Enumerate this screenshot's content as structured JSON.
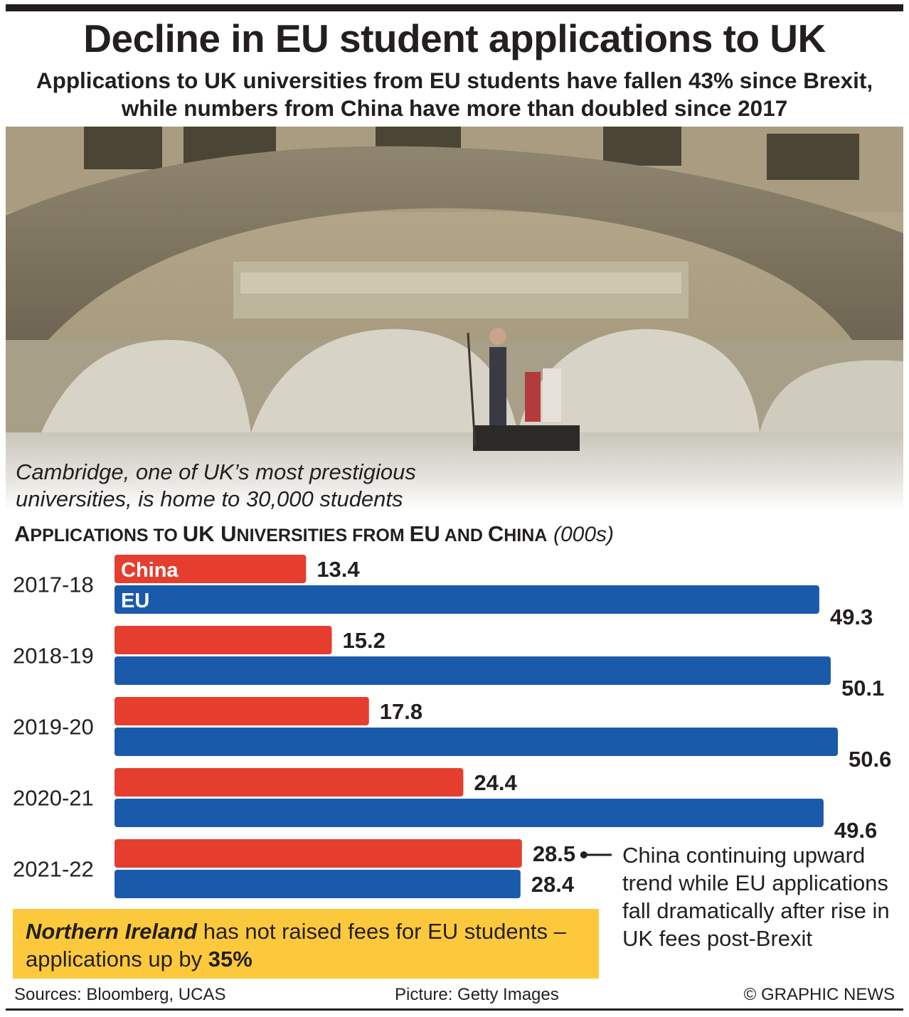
{
  "header": {
    "title": "Decline in EU student applications to UK",
    "subtitle": "Applications to UK universities from EU students have fallen 43% since Brexit, while numbers from China have more than doubled since 2017"
  },
  "photo": {
    "caption": "Cambridge, one of UK’s most prestigious universities, is home to 30,000 students"
  },
  "chart_title": {
    "pre": "A",
    "main1": "PPLICATIONS TO ",
    "uk": "UK U",
    "main2": "NIVERSITIES FROM ",
    "eu": "EU",
    "main3": " AND ",
    "china_c": "C",
    "china_rest": "HINA",
    "unit": "(000s)"
  },
  "chart_data": {
    "type": "bar",
    "orientation": "horizontal",
    "title": "APPLICATIONS TO UK UNIVERSITIES FROM EU AND CHINA (000s)",
    "categories": [
      "2017-18",
      "2018-19",
      "2019-20",
      "2020-21",
      "2021-22"
    ],
    "series": [
      {
        "name": "China",
        "color": "#e53e2f",
        "values": [
          13.4,
          15.2,
          17.8,
          24.4,
          28.5
        ],
        "labels": [
          "13.4",
          "15.2",
          "17.8",
          "24.4",
          "28.5"
        ]
      },
      {
        "name": "EU",
        "color": "#1a5aab",
        "values": [
          49.3,
          50.1,
          50.6,
          49.6,
          28.4
        ],
        "labels": [
          "49.3",
          "50.1",
          "50.6",
          "49.6",
          "28.4"
        ]
      }
    ],
    "xlim": [
      0,
      50.6
    ],
    "grid": false
  },
  "annotation": "China continuing upward trend while EU applications fall dramatically after rise in UK fees post-Brexit",
  "footnote": {
    "region": "Northern Ireland",
    "text": " has not raised fees for EU students – applications up by ",
    "pct": "35%"
  },
  "footer": {
    "sources": "Sources: Bloomberg, UCAS",
    "picture": "Picture: Getty Images",
    "credit": "© GRAPHIC NEWS"
  },
  "colors": {
    "china": "#e53e2f",
    "eu": "#1a5aab",
    "highlight": "#fdc93c"
  }
}
